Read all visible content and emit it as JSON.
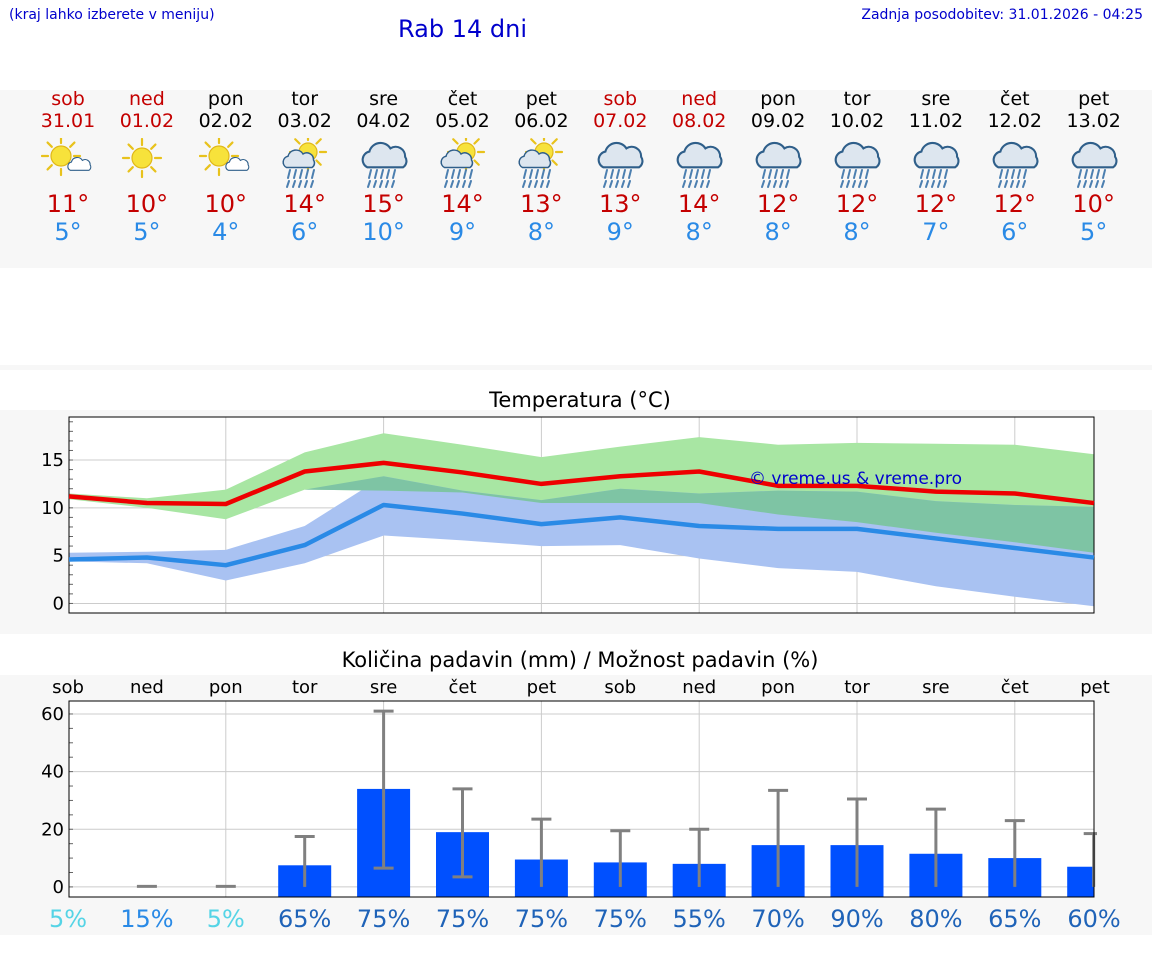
{
  "header": {
    "left_note": "(kraj lahko izberete v meniju)",
    "title": "Rab 14 dni",
    "last_update": "Zadnja posodobitev: 31.01.2026 - 04:25"
  },
  "colors": {
    "weekend": "#c40000",
    "max_temp": "#c40000",
    "min_temp": "#2a8ae6",
    "max_line": "#ee0000",
    "min_line": "#2a8ae6",
    "max_band": "#a8e6a3",
    "min_band": "#a9c2f2",
    "overlap_band": "#7ec4a4",
    "bar": "#0050ff",
    "errbar": "#808080"
  },
  "days": [
    {
      "name": "sob",
      "date": "31.01",
      "weekend": true,
      "icon": "sun-cloud-icon",
      "max": "11°",
      "min": "5°"
    },
    {
      "name": "ned",
      "date": "01.02",
      "weekend": true,
      "icon": "sun-icon",
      "max": "10°",
      "min": "5°"
    },
    {
      "name": "pon",
      "date": "02.02",
      "weekend": false,
      "icon": "sun-cloud-icon",
      "max": "10°",
      "min": "4°"
    },
    {
      "name": "tor",
      "date": "03.02",
      "weekend": false,
      "icon": "sun-rain-icon",
      "max": "14°",
      "min": "6°"
    },
    {
      "name": "sre",
      "date": "04.02",
      "weekend": false,
      "icon": "cloud-rain-icon",
      "max": "15°",
      "min": "10°"
    },
    {
      "name": "čet",
      "date": "05.02",
      "weekend": false,
      "icon": "sun-rain-icon",
      "max": "14°",
      "min": "9°"
    },
    {
      "name": "pet",
      "date": "06.02",
      "weekend": false,
      "icon": "sun-rain-icon",
      "max": "13°",
      "min": "8°"
    },
    {
      "name": "sob",
      "date": "07.02",
      "weekend": true,
      "icon": "cloud-rain-icon",
      "max": "13°",
      "min": "9°"
    },
    {
      "name": "ned",
      "date": "08.02",
      "weekend": true,
      "icon": "cloud-rain-icon",
      "max": "14°",
      "min": "8°"
    },
    {
      "name": "pon",
      "date": "09.02",
      "weekend": false,
      "icon": "cloud-rain-icon",
      "max": "12°",
      "min": "8°"
    },
    {
      "name": "tor",
      "date": "10.02",
      "weekend": false,
      "icon": "cloud-rain-icon",
      "max": "12°",
      "min": "8°"
    },
    {
      "name": "sre",
      "date": "11.02",
      "weekend": false,
      "icon": "cloud-rain-icon",
      "max": "12°",
      "min": "7°"
    },
    {
      "name": "čet",
      "date": "12.02",
      "weekend": false,
      "icon": "cloud-rain-icon",
      "max": "12°",
      "min": "6°"
    },
    {
      "name": "pet",
      "date": "13.02",
      "weekend": false,
      "icon": "cloud-rain-icon",
      "max": "10°",
      "min": "5°"
    }
  ],
  "chart_data": [
    {
      "type": "line",
      "title": "Temperatura (°C)",
      "watermark": "© vreme.us & vreme.pro",
      "ylim": [
        -1,
        19.5
      ],
      "yticks": [
        0,
        5,
        10,
        15
      ],
      "x": [
        0,
        1,
        2,
        3,
        4,
        5,
        6,
        7,
        8,
        9,
        10,
        11,
        12,
        13
      ],
      "series": [
        {
          "name": "max",
          "values": [
            11.2,
            10.5,
            10.4,
            13.8,
            14.7,
            13.7,
            12.5,
            13.3,
            13.8,
            12.3,
            12.3,
            11.7,
            11.5,
            10.5
          ]
        },
        {
          "name": "min",
          "values": [
            4.6,
            4.8,
            4.0,
            6.1,
            10.3,
            9.4,
            8.3,
            9.0,
            8.1,
            7.8,
            7.8,
            6.8,
            5.8,
            4.8
          ]
        }
      ],
      "max_range": {
        "low": [
          10.9,
          10.0,
          8.8,
          11.9,
          11.8,
          11.6,
          10.5,
          10.5,
          10.5,
          9.3,
          8.5,
          7.4,
          6.4,
          5.3
        ],
        "high": [
          11.5,
          11.0,
          11.9,
          15.8,
          17.8,
          16.6,
          15.3,
          16.4,
          17.4,
          16.6,
          16.8,
          16.7,
          16.6,
          15.6
        ]
      },
      "min_range": {
        "low": [
          4.4,
          4.2,
          2.4,
          4.2,
          7.1,
          6.6,
          6.0,
          6.1,
          4.7,
          3.7,
          3.3,
          1.8,
          0.7,
          -0.3
        ],
        "high": [
          5.3,
          5.4,
          5.6,
          8.1,
          13.3,
          11.8,
          10.8,
          12.0,
          11.5,
          11.8,
          11.7,
          10.7,
          10.3,
          10.1
        ]
      }
    },
    {
      "type": "bar",
      "title": "Količina padavin (mm) / Možnost padavin (%)",
      "categories": [
        "sob",
        "ned",
        "pon",
        "tor",
        "sre",
        "čet",
        "pet",
        "sob",
        "ned",
        "pon",
        "tor",
        "sre",
        "čet",
        "pet"
      ],
      "values": [
        0,
        0,
        0,
        7.5,
        34.0,
        19.0,
        9.5,
        8.5,
        8.0,
        14.5,
        14.5,
        11.5,
        10.0,
        7.0
      ],
      "err_low": [
        0,
        0,
        0,
        0,
        6.5,
        3.5,
        0,
        0,
        0,
        0,
        0,
        0,
        0,
        0
      ],
      "err_high": [
        0,
        0.2,
        0.2,
        17.5,
        61.0,
        34.0,
        23.5,
        19.5,
        20.0,
        33.5,
        30.5,
        27.0,
        23.0,
        18.5
      ],
      "ylim": [
        -3.5,
        64.5
      ],
      "yticks": [
        0,
        20,
        40,
        60
      ],
      "chance": [
        "5%",
        "15%",
        "5%",
        "65%",
        "75%",
        "75%",
        "75%",
        "75%",
        "55%",
        "70%",
        "90%",
        "80%",
        "65%",
        "60%"
      ],
      "chance_level": [
        "low",
        "mid",
        "low",
        "high",
        "high",
        "high",
        "high",
        "high",
        "high",
        "high",
        "high",
        "high",
        "high",
        "high"
      ]
    }
  ]
}
